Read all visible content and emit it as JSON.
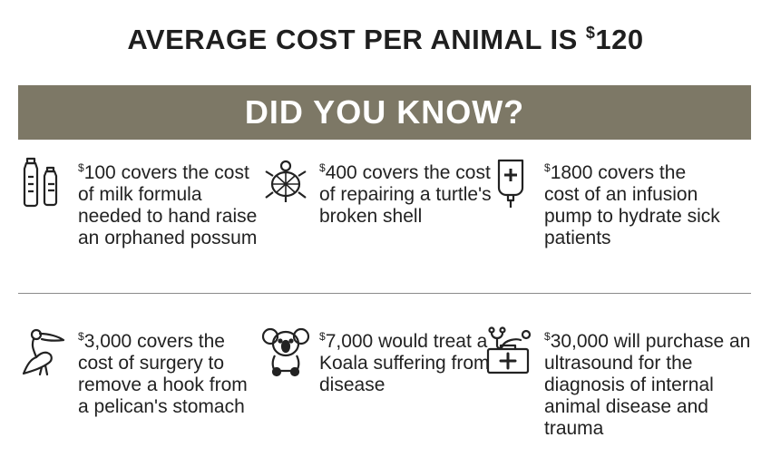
{
  "headline": {
    "text": "AVERAGE COST PER ANIMAL IS ",
    "currency": "$",
    "amount": "120"
  },
  "banner": {
    "text": "DID YOU KNOW?"
  },
  "colors": {
    "banner_bg": "#7d7866",
    "text": "#222222",
    "divider": "#8a8a8a"
  },
  "facts": [
    {
      "icon": "milk-bottles-icon",
      "currency": "$",
      "amount": "100",
      "rest": " covers the cost of milk formula needed to hand raise an orphaned possum"
    },
    {
      "icon": "turtle-icon",
      "currency": "$",
      "amount": "400",
      "rest": " covers the cost of repairing a turtle's broken shell"
    },
    {
      "icon": "infusion-bag-icon",
      "currency": "$",
      "amount": "1800",
      "rest": " covers the cost of an infusion pump to hydrate sick patients"
    },
    {
      "icon": "pelican-icon",
      "currency": "$",
      "amount": "3,000",
      "rest": " covers the cost of surgery to remove a hook from a pelican's stomach"
    },
    {
      "icon": "koala-icon",
      "currency": "$",
      "amount": "7,000",
      "rest": " would treat a Koala suffering from disease"
    },
    {
      "icon": "medical-kit-stethoscope-icon",
      "currency": "$",
      "amount": "30,000",
      "rest": " will purchase an ultrasound for the diagnosis of internal animal disease and trauma"
    }
  ]
}
